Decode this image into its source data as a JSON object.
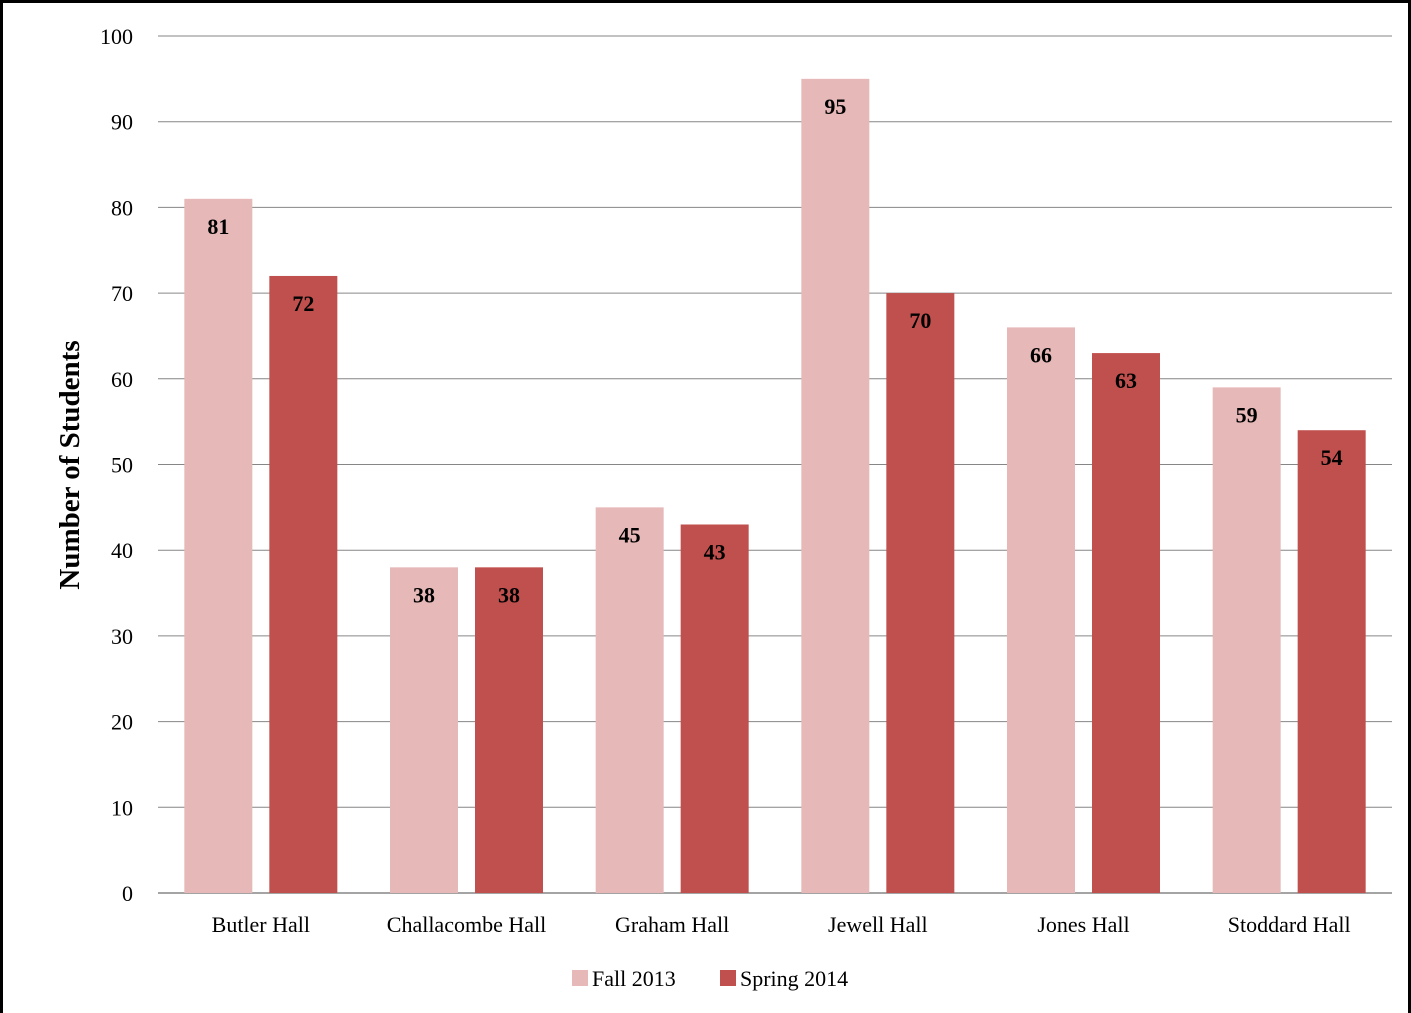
{
  "chart_data": {
    "type": "bar",
    "title": "",
    "xlabel": "",
    "ylabel": "Number of Students",
    "ylim": [
      0,
      100
    ],
    "yticks": [
      0,
      10,
      20,
      30,
      40,
      50,
      60,
      70,
      80,
      90,
      100
    ],
    "grid": true,
    "legend_position": "bottom",
    "categories": [
      "Butler Hall",
      "Challacombe Hall",
      "Graham Hall",
      "Jewell Hall",
      "Jones Hall",
      "Stoddard Hall"
    ],
    "series": [
      {
        "name": "Fall 2013",
        "color": "#e6b9b8",
        "values": [
          81,
          38,
          45,
          95,
          66,
          59
        ]
      },
      {
        "name": "Spring 2014",
        "color": "#c0504d",
        "values": [
          72,
          38,
          43,
          70,
          63,
          54
        ]
      }
    ],
    "data_labels": true
  }
}
